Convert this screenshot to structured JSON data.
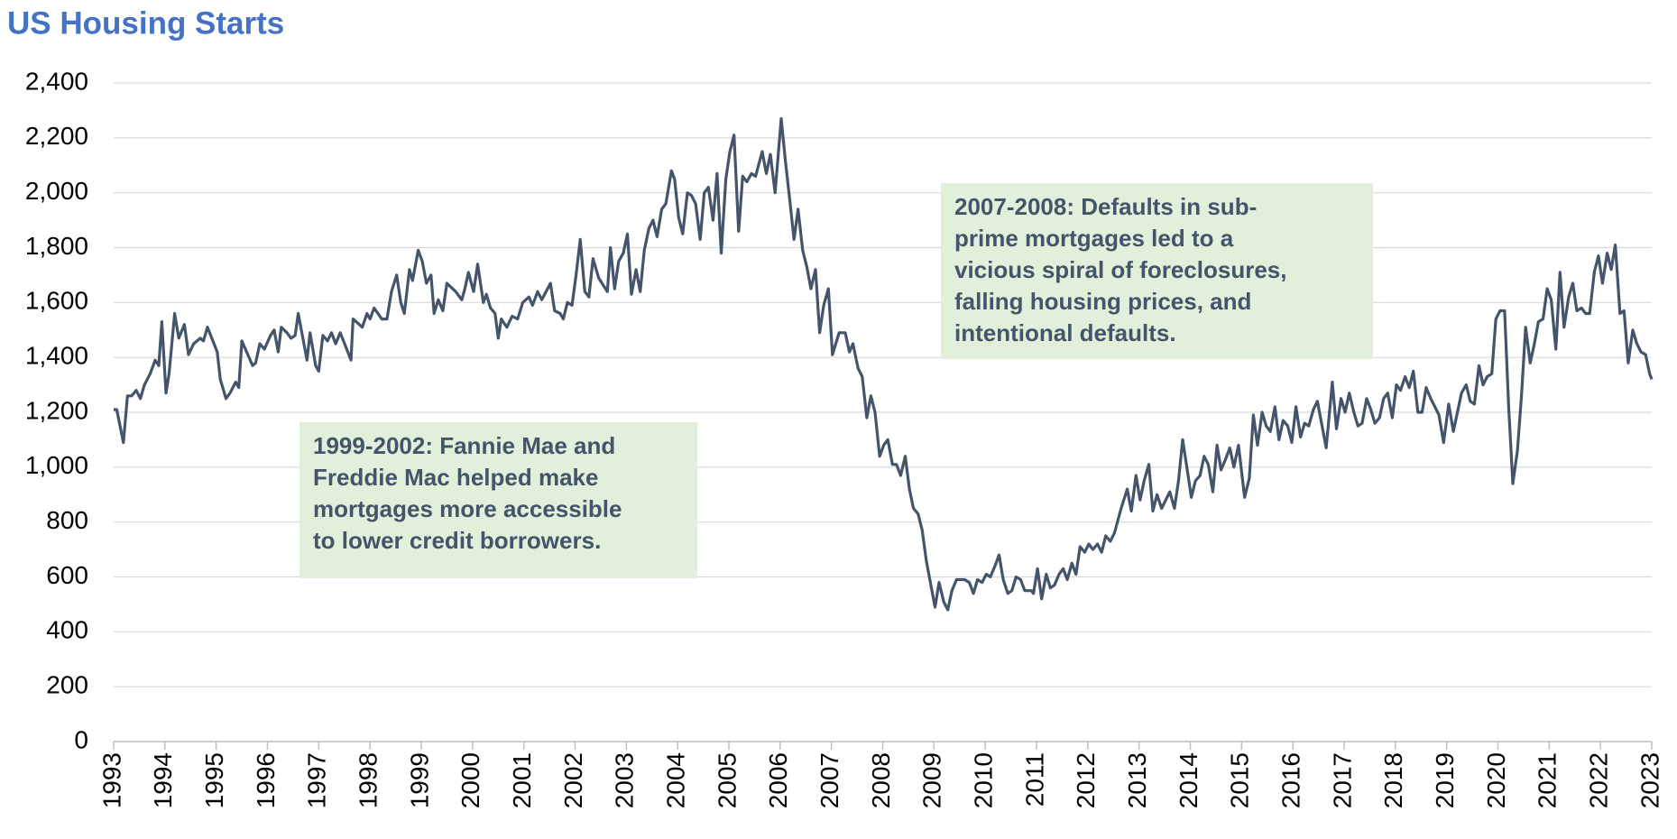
{
  "chart_data": {
    "type": "line",
    "title": "US Housing Starts",
    "color": "#44546a",
    "xlim": [
      1993,
      2023
    ],
    "ylim": [
      0,
      2400
    ],
    "xticks": [
      1993,
      1994,
      1995,
      1996,
      1997,
      1998,
      1999,
      2000,
      2001,
      2002,
      2003,
      2004,
      2005,
      2006,
      2007,
      2008,
      2009,
      2010,
      2011,
      2012,
      2013,
      2014,
      2015,
      2016,
      2017,
      2018,
      2019,
      2020,
      2021,
      2022,
      2023
    ],
    "yticks": [
      0,
      200,
      400,
      600,
      800,
      {
        "value": 1000,
        "label": "1,000"
      },
      {
        "value": 1200,
        "label": "1,200"
      },
      {
        "value": 1400,
        "label": "1,400"
      },
      {
        "value": 1600,
        "label": "1,600"
      },
      {
        "value": 1800,
        "label": "1,800"
      },
      {
        "value": 2000,
        "label": "2,000"
      },
      {
        "value": 2200,
        "label": "2,200"
      },
      {
        "value": 2400,
        "label": "2,400"
      }
    ],
    "grid": true,
    "x": [
      1993.0,
      1993.06,
      1993.19,
      1993.27,
      1993.35,
      1993.44,
      1993.52,
      1993.6,
      1993.71,
      1993.81,
      1993.88,
      1993.94,
      1994.02,
      1994.08,
      1994.19,
      1994.27,
      1994.38,
      1994.46,
      1994.56,
      1994.69,
      1994.75,
      1994.83,
      1995.02,
      1995.08,
      1995.19,
      1995.27,
      1995.38,
      1995.44,
      1995.5,
      1995.71,
      1995.77,
      1995.85,
      1995.94,
      1996.06,
      1996.13,
      1996.21,
      1996.27,
      1996.38,
      1996.46,
      1996.54,
      1996.6,
      1996.71,
      1996.77,
      1996.83,
      1996.94,
      1997.0,
      1997.08,
      1997.17,
      1997.25,
      1997.33,
      1997.42,
      1997.63,
      1997.67,
      1997.85,
      1997.94,
      1998.0,
      1998.08,
      1998.23,
      1998.33,
      1998.42,
      1998.52,
      1998.6,
      1998.67,
      1998.77,
      1998.83,
      1998.94,
      1999.02,
      1999.1,
      1999.19,
      1999.25,
      1999.33,
      1999.42,
      1999.5,
      1999.67,
      1999.79,
      1999.85,
      1999.92,
      2000.02,
      2000.1,
      2000.21,
      2000.27,
      2000.35,
      2000.44,
      2000.5,
      2000.56,
      2000.67,
      2000.77,
      2000.88,
      2000.98,
      2001.1,
      2001.17,
      2001.27,
      2001.35,
      2001.52,
      2001.6,
      2001.71,
      2001.77,
      2001.85,
      2001.94,
      2002.02,
      2002.1,
      2002.19,
      2002.27,
      2002.35,
      2002.46,
      2002.56,
      2002.63,
      2002.69,
      2002.77,
      2002.85,
      2002.94,
      2003.02,
      2003.1,
      2003.19,
      2003.27,
      2003.35,
      2003.44,
      2003.52,
      2003.6,
      2003.69,
      2003.77,
      2003.88,
      2003.94,
      2004.02,
      2004.1,
      2004.19,
      2004.27,
      2004.35,
      2004.44,
      2004.52,
      2004.6,
      2004.69,
      2004.77,
      2004.85,
      2004.94,
      2005.02,
      2005.1,
      2005.19,
      2005.27,
      2005.35,
      2005.44,
      2005.52,
      2005.65,
      2005.73,
      2005.81,
      2005.9,
      2006.02,
      2006.1,
      2006.19,
      2006.27,
      2006.35,
      2006.44,
      2006.52,
      2006.6,
      2006.69,
      2006.77,
      2006.85,
      2006.94,
      2007.02,
      2007.15,
      2007.27,
      2007.35,
      2007.42,
      2007.52,
      2007.6,
      2007.69,
      2007.77,
      2007.85,
      2007.94,
      2008.02,
      2008.1,
      2008.19,
      2008.27,
      2008.35,
      2008.44,
      2008.52,
      2008.6,
      2008.69,
      2008.77,
      2008.85,
      2008.94,
      2009.02,
      2009.1,
      2009.19,
      2009.27,
      2009.35,
      2009.44,
      2009.6,
      2009.69,
      2009.77,
      2009.85,
      2009.94,
      2010.02,
      2010.1,
      2010.19,
      2010.27,
      2010.35,
      2010.44,
      2010.52,
      2010.6,
      2010.69,
      2010.77,
      2010.9,
      2010.94,
      2011.02,
      2011.1,
      2011.19,
      2011.27,
      2011.35,
      2011.44,
      2011.52,
      2011.6,
      2011.69,
      2011.77,
      2011.85,
      2011.94,
      2012.02,
      2012.1,
      2012.19,
      2012.27,
      2012.35,
      2012.44,
      2012.52,
      2012.65,
      2012.77,
      2012.85,
      2012.94,
      2013.02,
      2013.1,
      2013.19,
      2013.27,
      2013.35,
      2013.44,
      2013.52,
      2013.6,
      2013.69,
      2013.77,
      2013.85,
      2013.94,
      2014.02,
      2014.1,
      2014.19,
      2014.27,
      2014.35,
      2014.44,
      2014.52,
      2014.6,
      2014.69,
      2014.77,
      2014.85,
      2014.94,
      2015.06,
      2015.15,
      2015.23,
      2015.31,
      2015.4,
      2015.48,
      2015.56,
      2015.65,
      2015.73,
      2015.81,
      2015.9,
      2015.98,
      2016.06,
      2016.15,
      2016.23,
      2016.31,
      2016.4,
      2016.48,
      2016.56,
      2016.65,
      2016.77,
      2016.85,
      2016.94,
      2017.02,
      2017.1,
      2017.19,
      2017.27,
      2017.35,
      2017.44,
      2017.52,
      2017.6,
      2017.69,
      2017.77,
      2017.85,
      2017.94,
      2018.02,
      2018.1,
      2018.19,
      2018.27,
      2018.35,
      2018.44,
      2018.52,
      2018.6,
      2018.69,
      2018.77,
      2018.85,
      2018.94,
      2019.04,
      2019.13,
      2019.21,
      2019.29,
      2019.38,
      2019.46,
      2019.54,
      2019.63,
      2019.71,
      2019.79,
      2019.88,
      2019.96,
      2020.04,
      2020.13,
      2020.21,
      2020.29,
      2020.38,
      2020.46,
      2020.54,
      2020.63,
      2020.71,
      2020.79,
      2020.88,
      2020.96,
      2021.04,
      2021.13,
      2021.21,
      2021.29,
      2021.38,
      2021.46,
      2021.54,
      2021.63,
      2021.71,
      2021.79,
      2021.88,
      2021.96,
      2022.04,
      2022.13,
      2022.21,
      2022.29,
      2022.38,
      2022.46,
      2022.54,
      2022.63,
      2022.71,
      2022.79,
      2022.88,
      2022.96,
      2023.0
    ],
    "values": [
      1210,
      1210,
      1090,
      1260,
      1260,
      1280,
      1250,
      1300,
      1340,
      1390,
      1370,
      1530,
      1270,
      1340,
      1560,
      1470,
      1520,
      1410,
      1450,
      1470,
      1460,
      1510,
      1420,
      1320,
      1250,
      1270,
      1310,
      1290,
      1460,
      1370,
      1380,
      1450,
      1430,
      1480,
      1500,
      1420,
      1510,
      1490,
      1470,
      1480,
      1560,
      1450,
      1390,
      1490,
      1370,
      1350,
      1480,
      1460,
      1490,
      1450,
      1490,
      1390,
      1540,
      1510,
      1560,
      1540,
      1580,
      1540,
      1540,
      1640,
      1700,
      1600,
      1560,
      1720,
      1680,
      1790,
      1750,
      1670,
      1700,
      1560,
      1610,
      1570,
      1670,
      1640,
      1610,
      1650,
      1710,
      1640,
      1740,
      1600,
      1630,
      1580,
      1560,
      1470,
      1540,
      1510,
      1550,
      1540,
      1600,
      1620,
      1590,
      1640,
      1610,
      1670,
      1570,
      1560,
      1540,
      1600,
      1590,
      1700,
      1830,
      1640,
      1620,
      1760,
      1690,
      1660,
      1640,
      1800,
      1650,
      1750,
      1780,
      1850,
      1630,
      1720,
      1640,
      1790,
      1870,
      1900,
      1840,
      1940,
      1960,
      2080,
      2050,
      1910,
      1850,
      2000,
      1990,
      1960,
      1830,
      2000,
      2020,
      1900,
      2070,
      1780,
      2050,
      2150,
      2210,
      1860,
      2060,
      2040,
      2070,
      2060,
      2150,
      2070,
      2140,
      2000,
      2270,
      2120,
      1970,
      1830,
      1940,
      1790,
      1730,
      1650,
      1720,
      1490,
      1590,
      1650,
      1410,
      1490,
      1490,
      1420,
      1450,
      1360,
      1330,
      1180,
      1260,
      1200,
      1040,
      1080,
      1100,
      1010,
      1010,
      970,
      1040,
      920,
      850,
      830,
      770,
      660,
      570,
      490,
      580,
      510,
      480,
      550,
      590,
      590,
      580,
      540,
      590,
      580,
      610,
      600,
      640,
      680,
      590,
      540,
      550,
      600,
      590,
      550,
      550,
      540,
      630,
      520,
      610,
      560,
      570,
      610,
      630,
      590,
      650,
      610,
      710,
      690,
      720,
      700,
      720,
      690,
      750,
      730,
      760,
      850,
      920,
      840,
      970,
      880,
      950,
      1010,
      840,
      900,
      850,
      880,
      910,
      850,
      950,
      1100,
      990,
      890,
      950,
      970,
      1040,
      1010,
      910,
      1080,
      990,
      1030,
      1070,
      1000,
      1080,
      890,
      960,
      1190,
      1080,
      1200,
      1150,
      1130,
      1220,
      1100,
      1170,
      1150,
      1090,
      1220,
      1110,
      1160,
      1150,
      1210,
      1240,
      1160,
      1070,
      1310,
      1140,
      1250,
      1200,
      1270,
      1200,
      1150,
      1160,
      1250,
      1210,
      1160,
      1180,
      1250,
      1270,
      1180,
      1300,
      1280,
      1330,
      1290,
      1350,
      1200,
      1200,
      1290,
      1250,
      1220,
      1190,
      1090,
      1230,
      1130,
      1200,
      1270,
      1300,
      1240,
      1230,
      1370,
      1300,
      1330,
      1340,
      1540,
      1570,
      1570,
      1220,
      940,
      1060,
      1260,
      1510,
      1380,
      1450,
      1530,
      1540,
      1650,
      1610,
      1430,
      1710,
      1510,
      1620,
      1670,
      1570,
      1580,
      1560,
      1560,
      1710,
      1770,
      1670,
      1780,
      1720,
      1810,
      1560,
      1570,
      1380,
      1500,
      1450,
      1420,
      1410,
      1340,
      1320
    ],
    "annotations": [
      {
        "lines": [
          "1999-2002: Fannie Mae and",
          "Freddie Mac helped make",
          "mortgages more accessible",
          "to lower credit borrowers."
        ]
      },
      {
        "lines": [
          "2007-2008: Defaults in sub-",
          "prime mortgages led to a",
          "vicious spiral of foreclosures,",
          "falling housing prices, and",
          "intentional defaults."
        ]
      }
    ]
  }
}
